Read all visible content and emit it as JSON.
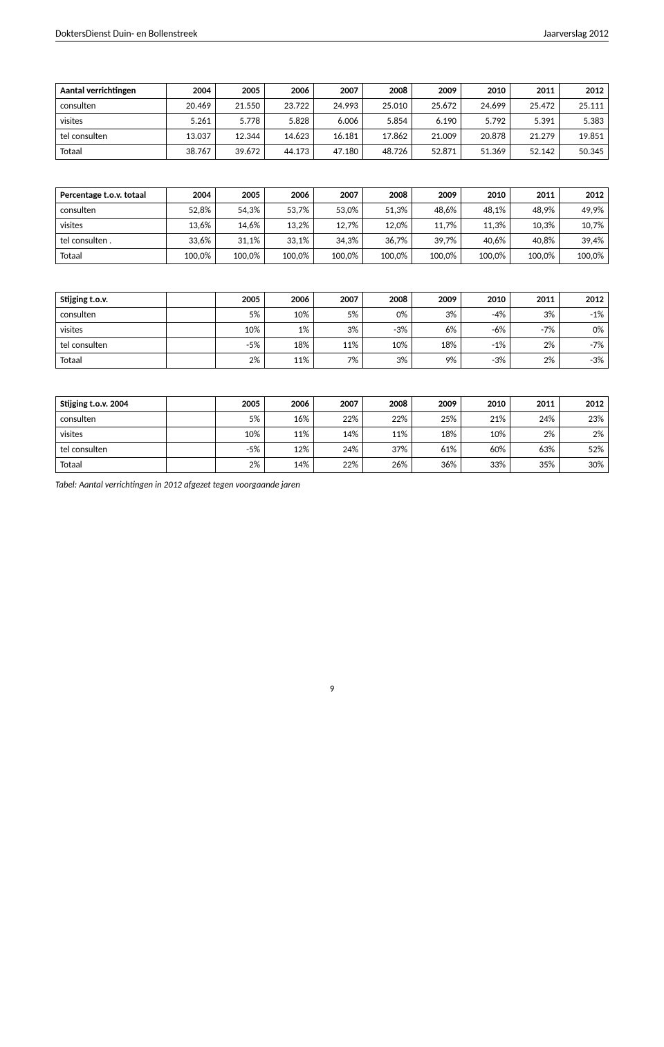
{
  "header": {
    "left": "DoktersDienst Duin- en Bollenstreek",
    "right": "Jaarverslag 2012"
  },
  "tables": [
    {
      "headers": [
        "Aantal verrichtingen",
        "2004",
        "2005",
        "2006",
        "2007",
        "2008",
        "2009",
        "2010",
        "2011",
        "2012"
      ],
      "rows": [
        [
          "consulten",
          "20.469",
          "21.550",
          "23.722",
          "24.993",
          "25.010",
          "25.672",
          "24.699",
          "25.472",
          "25.111"
        ],
        [
          "visites",
          "5.261",
          "5.778",
          "5.828",
          "6.006",
          "5.854",
          "6.190",
          "5.792",
          "5.391",
          "5.383"
        ],
        [
          "tel consulten",
          "13.037",
          "12.344",
          "14.623",
          "16.181",
          "17.862",
          "21.009",
          "20.878",
          "21.279",
          "19.851"
        ],
        [
          "Totaal",
          "38.767",
          "39.672",
          "44.173",
          "47.180",
          "48.726",
          "52.871",
          "51.369",
          "52.142",
          "50.345"
        ]
      ]
    },
    {
      "headers": [
        "Percentage t.o.v. totaal",
        "2004",
        "2005",
        "2006",
        "2007",
        "2008",
        "2009",
        "2010",
        "2011",
        "2012"
      ],
      "rows": [
        [
          "consulten",
          "52,8%",
          "54,3%",
          "53,7%",
          "53,0%",
          "51,3%",
          "48,6%",
          "48,1%",
          "48,9%",
          "49,9%"
        ],
        [
          "visites",
          "13,6%",
          "14,6%",
          "13,2%",
          "12,7%",
          "12,0%",
          "11,7%",
          "11,3%",
          "10,3%",
          "10,7%"
        ],
        [
          "tel consulten .",
          "33,6%",
          "31,1%",
          "33,1%",
          "34,3%",
          "36,7%",
          "39,7%",
          "40,6%",
          "40,8%",
          "39,4%"
        ],
        [
          "Totaal",
          "100,0%",
          "100,0%",
          "100,0%",
          "100,0%",
          "100,0%",
          "100,0%",
          "100,0%",
          "100,0%",
          "100,0%"
        ]
      ]
    },
    {
      "headers": [
        "Stijging t.o.v.",
        "",
        "2005",
        "2006",
        "2007",
        "2008",
        "2009",
        "2010",
        "2011",
        "2012"
      ],
      "rows": [
        [
          "consulten",
          "",
          "5%",
          "10%",
          "5%",
          "0%",
          "3%",
          "-4%",
          "3%",
          "-1%"
        ],
        [
          "visites",
          "",
          "10%",
          "1%",
          "3%",
          "-3%",
          "6%",
          "-6%",
          "-7%",
          "0%"
        ],
        [
          "tel consulten",
          "",
          "-5%",
          "18%",
          "11%",
          "10%",
          "18%",
          "-1%",
          "2%",
          "-7%"
        ],
        [
          "Totaal",
          "",
          "2%",
          "11%",
          "7%",
          "3%",
          "9%",
          "-3%",
          "2%",
          "-3%"
        ]
      ]
    },
    {
      "headers": [
        "Stijging t.o.v. 2004",
        "",
        "2005",
        "2006",
        "2007",
        "2008",
        "2009",
        "2010",
        "2011",
        "2012"
      ],
      "rows": [
        [
          "consulten",
          "",
          "5%",
          "16%",
          "22%",
          "22%",
          "25%",
          "21%",
          "24%",
          "23%"
        ],
        [
          "visites",
          "",
          "10%",
          "11%",
          "14%",
          "11%",
          "18%",
          "10%",
          "2%",
          "2%"
        ],
        [
          "tel consulten",
          "",
          "-5%",
          "12%",
          "24%",
          "37%",
          "61%",
          "60%",
          "63%",
          "52%"
        ],
        [
          "Totaal",
          "",
          "2%",
          "14%",
          "22%",
          "26%",
          "36%",
          "33%",
          "35%",
          "30%"
        ]
      ]
    }
  ],
  "caption": "Tabel: Aantal verrichtingen in 2012 afgezet tegen voorgaande jaren",
  "pagenum": "9"
}
